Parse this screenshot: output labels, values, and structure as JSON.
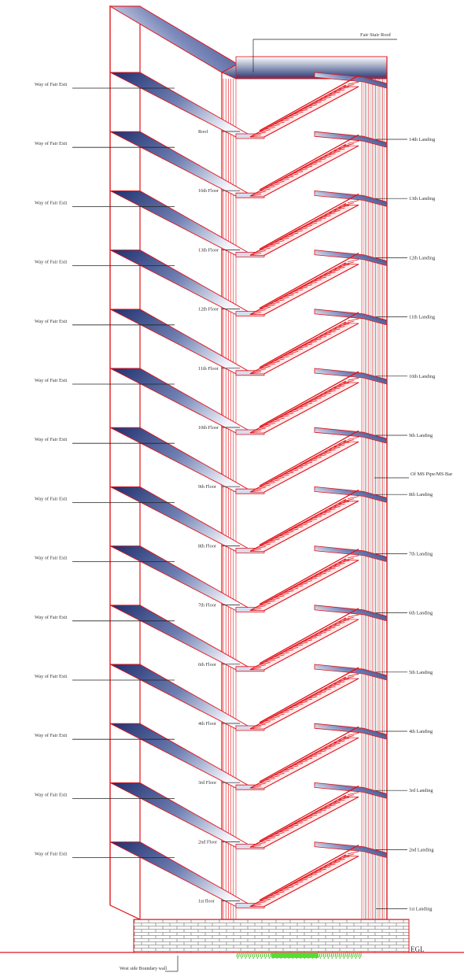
{
  "roof_label": "Fair Stair Roof",
  "pipe_label": "Of MS Pipe/MS Bar",
  "egl_label": "EGL",
  "boundary_label": "West side Boundary wall",
  "exit_label": "Way of Fair Exit",
  "floor_labels": [
    "Roof",
    "16th Floor",
    "13th Floor",
    "12th Floor",
    "11th Floor",
    "10th Floor",
    "9th Floor",
    "8th Floor",
    "7th Floor",
    "6th Floor",
    "4th Floor",
    "3rd Floor",
    "2nd Floor",
    "1st floor"
  ],
  "landing_labels": [
    "14th Landing",
    "13th Landing",
    "12th Landing",
    "11th Landing",
    "10th Landing",
    "9th Landing",
    "8th Landing",
    "7th Landing",
    "6th Landing",
    "5th Landing",
    "4th Landing",
    "3rd Landing",
    "2nd Landing",
    "1st Landing"
  ],
  "colors": {
    "outline": "#e0141a",
    "steel": "#2a3d78",
    "text": "#333333",
    "grass": "#55dd33"
  }
}
